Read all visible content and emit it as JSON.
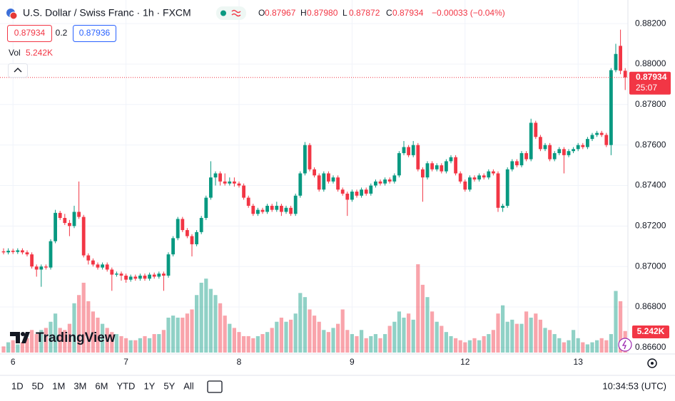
{
  "header": {
    "symbol": "U.S. Dollar / Swiss Franc · 1h · FXCM",
    "ohlc": [
      {
        "label": "O",
        "value": "0.87967"
      },
      {
        "label": "H",
        "value": "0.87980"
      },
      {
        "label": "L",
        "value": "0.87872"
      },
      {
        "label": "C",
        "value": "0.87934"
      }
    ],
    "change": "−0.00033 (−0.04%)"
  },
  "trade": {
    "sell": "0.87934",
    "spread": "0.2",
    "buy": "0.87936"
  },
  "volume_legend": {
    "label": "Vol",
    "value": "5.242K"
  },
  "logo": "TradingView",
  "toolbar": {
    "ranges": [
      "1D",
      "5D",
      "1M",
      "3M",
      "6M",
      "YTD",
      "1Y",
      "5Y",
      "All"
    ],
    "time": "10:34:53 (UTC)"
  },
  "chart_data": {
    "type": "candlestick",
    "up_color": "#089981",
    "down_color": "#f23645",
    "grid": true,
    "categories": [
      null,
      null,
      "6",
      null,
      null,
      null,
      null,
      null,
      null,
      null,
      null,
      null,
      null,
      null,
      null,
      null,
      null,
      null,
      null,
      null,
      null,
      null,
      null,
      null,
      null,
      null,
      "7",
      null,
      null,
      null,
      null,
      null,
      null,
      null,
      null,
      null,
      null,
      null,
      null,
      null,
      null,
      null,
      null,
      null,
      null,
      null,
      null,
      null,
      null,
      null,
      "8",
      null,
      null,
      null,
      null,
      null,
      null,
      null,
      null,
      null,
      null,
      null,
      null,
      null,
      null,
      null,
      null,
      null,
      null,
      null,
      null,
      null,
      null,
      null,
      "9",
      null,
      null,
      null,
      null,
      null,
      null,
      null,
      null,
      null,
      null,
      null,
      null,
      null,
      null,
      null,
      null,
      null,
      null,
      null,
      null,
      null,
      null,
      null,
      "12",
      null,
      null,
      null,
      null,
      null,
      null,
      null,
      null,
      null,
      null,
      null,
      null,
      null,
      null,
      null,
      null,
      null,
      null,
      null,
      null,
      null,
      null,
      null,
      "13",
      null,
      null,
      null,
      null,
      null,
      null,
      null,
      null,
      null,
      null
    ],
    "candles": [
      [
        0.87075,
        0.8709,
        0.8706,
        0.8707
      ],
      [
        0.8707,
        0.8709,
        0.8706,
        0.87078
      ],
      [
        0.87078,
        0.87088,
        0.87062,
        0.87072
      ],
      [
        0.87072,
        0.8709,
        0.87062,
        0.8708
      ],
      [
        0.8708,
        0.8709,
        0.8706,
        0.8707
      ],
      [
        0.8707,
        0.8708,
        0.8705,
        0.8706
      ],
      [
        0.8706,
        0.8707,
        0.8699,
        0.87
      ],
      [
        0.87,
        0.8701,
        0.8695,
        0.86985
      ],
      [
        0.86985,
        0.8701,
        0.869,
        0.87
      ],
      [
        0.87,
        0.8701,
        0.86985,
        0.86995
      ],
      [
        0.86995,
        0.87135,
        0.86985,
        0.87125
      ],
      [
        0.87125,
        0.8728,
        0.87115,
        0.87265
      ],
      [
        0.87265,
        0.87275,
        0.8723,
        0.8724
      ],
      [
        0.8724,
        0.8726,
        0.87205,
        0.87215
      ],
      [
        0.87215,
        0.8723,
        0.8715,
        0.872
      ],
      [
        0.872,
        0.873,
        0.8719,
        0.8727
      ],
      [
        0.8727,
        0.8742,
        0.87235,
        0.87245
      ],
      [
        0.87245,
        0.87255,
        0.87045,
        0.87055
      ],
      [
        0.87055,
        0.87065,
        0.8701,
        0.8703
      ],
      [
        0.8703,
        0.8704,
        0.87,
        0.8701
      ],
      [
        0.8701,
        0.8702,
        0.86985,
        0.86995
      ],
      [
        0.86995,
        0.8702,
        0.86985,
        0.8701
      ],
      [
        0.8701,
        0.8702,
        0.86975,
        0.86985
      ],
      [
        0.86985,
        0.86995,
        0.8688,
        0.8696
      ],
      [
        0.8696,
        0.86975,
        0.8695,
        0.86965
      ],
      [
        0.86965,
        0.86975,
        0.8693,
        0.86955
      ],
      [
        0.86955,
        0.86965,
        0.8692,
        0.86935
      ],
      [
        0.86935,
        0.8696,
        0.86925,
        0.8695
      ],
      [
        0.8695,
        0.8696,
        0.8693,
        0.8694
      ],
      [
        0.8694,
        0.86965,
        0.8693,
        0.86955
      ],
      [
        0.86955,
        0.86965,
        0.8693,
        0.8694
      ],
      [
        0.8694,
        0.8697,
        0.8693,
        0.8696
      ],
      [
        0.8696,
        0.8697,
        0.8694,
        0.8695
      ],
      [
        0.8695,
        0.86975,
        0.8694,
        0.86965
      ],
      [
        0.86965,
        0.86975,
        0.8688,
        0.86955
      ],
      [
        0.86955,
        0.8707,
        0.86945,
        0.8706
      ],
      [
        0.8706,
        0.8715,
        0.8705,
        0.8714
      ],
      [
        0.8714,
        0.87245,
        0.8713,
        0.87235
      ],
      [
        0.87235,
        0.87245,
        0.8717,
        0.8718
      ],
      [
        0.8718,
        0.8719,
        0.8714,
        0.8715
      ],
      [
        0.8715,
        0.8716,
        0.8705,
        0.8711
      ],
      [
        0.8711,
        0.8718,
        0.871,
        0.8717
      ],
      [
        0.8717,
        0.8725,
        0.8716,
        0.8724
      ],
      [
        0.8724,
        0.8735,
        0.8723,
        0.8734
      ],
      [
        0.8734,
        0.8752,
        0.8733,
        0.8744
      ],
      [
        0.8744,
        0.8747,
        0.874,
        0.8746
      ],
      [
        0.8746,
        0.8747,
        0.874,
        0.8742
      ],
      [
        0.8742,
        0.8746,
        0.874,
        0.8741
      ],
      [
        0.8741,
        0.8744,
        0.874,
        0.8742
      ],
      [
        0.8742,
        0.8744,
        0.87395,
        0.8741
      ],
      [
        0.8741,
        0.8742,
        0.8739,
        0.874
      ],
      [
        0.874,
        0.8741,
        0.8733,
        0.8734
      ],
      [
        0.8734,
        0.8735,
        0.8729,
        0.873
      ],
      [
        0.873,
        0.8731,
        0.8725,
        0.8726
      ],
      [
        0.8726,
        0.8729,
        0.8725,
        0.8728
      ],
      [
        0.8728,
        0.8729,
        0.8726,
        0.8727
      ],
      [
        0.8727,
        0.8731,
        0.8726,
        0.873
      ],
      [
        0.873,
        0.8731,
        0.8727,
        0.8728
      ],
      [
        0.8728,
        0.8732,
        0.8727,
        0.873
      ],
      [
        0.873,
        0.8731,
        0.8725,
        0.8727
      ],
      [
        0.8727,
        0.873,
        0.8726,
        0.8729
      ],
      [
        0.8729,
        0.873,
        0.8725,
        0.8726
      ],
      [
        0.8726,
        0.8736,
        0.8725,
        0.8735
      ],
      [
        0.8735,
        0.8747,
        0.8734,
        0.8746
      ],
      [
        0.8746,
        0.87615,
        0.8745,
        0.876
      ],
      [
        0.876,
        0.8761,
        0.8747,
        0.8748
      ],
      [
        0.8748,
        0.8749,
        0.8744,
        0.8745
      ],
      [
        0.8745,
        0.8746,
        0.8737,
        0.8738
      ],
      [
        0.8738,
        0.8747,
        0.8737,
        0.8746
      ],
      [
        0.8746,
        0.8747,
        0.8741,
        0.8742
      ],
      [
        0.8742,
        0.8745,
        0.8741,
        0.8744
      ],
      [
        0.8744,
        0.8745,
        0.8737,
        0.8738
      ],
      [
        0.8738,
        0.8739,
        0.8735,
        0.8736
      ],
      [
        0.8736,
        0.8737,
        0.8725,
        0.8733
      ],
      [
        0.8733,
        0.8738,
        0.8732,
        0.8737
      ],
      [
        0.8737,
        0.8738,
        0.8734,
        0.8735
      ],
      [
        0.8735,
        0.8739,
        0.8734,
        0.8738
      ],
      [
        0.8738,
        0.8739,
        0.8735,
        0.8736
      ],
      [
        0.8736,
        0.8741,
        0.8735,
        0.874
      ],
      [
        0.874,
        0.8743,
        0.8739,
        0.8742
      ],
      [
        0.8742,
        0.8743,
        0.874,
        0.8741
      ],
      [
        0.8741,
        0.8744,
        0.874,
        0.8743
      ],
      [
        0.8743,
        0.8744,
        0.8741,
        0.8742
      ],
      [
        0.8742,
        0.8746,
        0.8741,
        0.8745
      ],
      [
        0.8745,
        0.8757,
        0.8744,
        0.8756
      ],
      [
        0.8756,
        0.8762,
        0.8755,
        0.8759
      ],
      [
        0.8759,
        0.876,
        0.8754,
        0.8755
      ],
      [
        0.8755,
        0.8762,
        0.8754,
        0.876
      ],
      [
        0.876,
        0.8761,
        0.8747,
        0.8748
      ],
      [
        0.8748,
        0.8749,
        0.8732,
        0.8744
      ],
      [
        0.8744,
        0.8752,
        0.8743,
        0.8751
      ],
      [
        0.8751,
        0.8752,
        0.8747,
        0.8748
      ],
      [
        0.8748,
        0.8751,
        0.8747,
        0.875
      ],
      [
        0.875,
        0.8751,
        0.8746,
        0.8747
      ],
      [
        0.8747,
        0.8753,
        0.8746,
        0.8752
      ],
      [
        0.8752,
        0.8755,
        0.8751,
        0.8754
      ],
      [
        0.8754,
        0.8755,
        0.8745,
        0.8746
      ],
      [
        0.8746,
        0.8747,
        0.8741,
        0.8742
      ],
      [
        0.8742,
        0.8743,
        0.8737,
        0.8738
      ],
      [
        0.8738,
        0.8745,
        0.8737,
        0.8744
      ],
      [
        0.8744,
        0.8745,
        0.8742,
        0.8743
      ],
      [
        0.8743,
        0.8746,
        0.8742,
        0.8745
      ],
      [
        0.8745,
        0.8746,
        0.8743,
        0.8744
      ],
      [
        0.8744,
        0.8748,
        0.8743,
        0.8747
      ],
      [
        0.8747,
        0.8748,
        0.8745,
        0.8746
      ],
      [
        0.8746,
        0.8747,
        0.8727,
        0.8729
      ],
      [
        0.8729,
        0.8731,
        0.8727,
        0.873
      ],
      [
        0.873,
        0.8749,
        0.8729,
        0.8748
      ],
      [
        0.8748,
        0.8753,
        0.8747,
        0.8752
      ],
      [
        0.8752,
        0.8753,
        0.8749,
        0.875
      ],
      [
        0.875,
        0.8757,
        0.8749,
        0.8756
      ],
      [
        0.8756,
        0.8757,
        0.8752,
        0.8753
      ],
      [
        0.8753,
        0.8773,
        0.8752,
        0.8771
      ],
      [
        0.8771,
        0.8772,
        0.8763,
        0.8764
      ],
      [
        0.8764,
        0.8765,
        0.8757,
        0.8758
      ],
      [
        0.8758,
        0.8761,
        0.8757,
        0.876
      ],
      [
        0.876,
        0.8761,
        0.8752,
        0.8753
      ],
      [
        0.8753,
        0.8757,
        0.8752,
        0.8756
      ],
      [
        0.8756,
        0.8759,
        0.8755,
        0.8758
      ],
      [
        0.8758,
        0.8759,
        0.8746,
        0.8755
      ],
      [
        0.8755,
        0.8758,
        0.8754,
        0.8757
      ],
      [
        0.8757,
        0.8759,
        0.8756,
        0.8758
      ],
      [
        0.8758,
        0.8761,
        0.8757,
        0.876
      ],
      [
        0.876,
        0.8761,
        0.8758,
        0.8759
      ],
      [
        0.8759,
        0.8764,
        0.8758,
        0.8763
      ],
      [
        0.8763,
        0.8766,
        0.8762,
        0.8765
      ],
      [
        0.8765,
        0.8767,
        0.8764,
        0.8766
      ],
      [
        0.8766,
        0.8767,
        0.8764,
        0.8765
      ],
      [
        0.8765,
        0.8766,
        0.8759,
        0.876
      ],
      [
        0.876,
        0.8798,
        0.8755,
        0.8797
      ],
      [
        0.8797,
        0.881,
        0.8796,
        0.8805
      ],
      [
        0.8809,
        0.8817,
        0.8795,
        0.87967
      ],
      [
        0.87967,
        0.8798,
        0.87872,
        0.87934
      ]
    ],
    "volume": [
      1500,
      2500,
      3000,
      2000,
      2500,
      3500,
      5500,
      4500,
      5500,
      6000,
      7500,
      9500,
      6000,
      5500,
      7000,
      12000,
      14000,
      17000,
      12500,
      10000,
      8500,
      7000,
      6000,
      5000,
      4500,
      4000,
      3500,
      3000,
      3000,
      3500,
      4000,
      3500,
      4500,
      4500,
      5500,
      8500,
      9000,
      8500,
      8500,
      9500,
      10500,
      14000,
      17000,
      18000,
      15500,
      14000,
      12000,
      9000,
      7000,
      6000,
      5000,
      4000,
      4000,
      3500,
      4000,
      4500,
      5000,
      6000,
      7500,
      8500,
      7500,
      8000,
      9500,
      14500,
      13500,
      10500,
      9000,
      7500,
      5500,
      5000,
      6000,
      7000,
      10500,
      5500,
      4500,
      4000,
      5500,
      3500,
      4000,
      4500,
      3500,
      4500,
      6500,
      7500,
      10000,
      8500,
      9500,
      8000,
      21500,
      16500,
      13500,
      10000,
      7500,
      6500,
      5000,
      4000,
      3500,
      3000,
      2500,
      3000,
      3500,
      3000,
      4000,
      4500,
      5500,
      9500,
      11500,
      7500,
      8000,
      7000,
      7000,
      10000,
      8500,
      9500,
      8000,
      6000,
      5500,
      4500,
      3500,
      2500,
      3000,
      5500,
      3500,
      2500,
      2000,
      2500,
      3000,
      3500,
      3000,
      4500,
      15000,
      12500,
      5242
    ],
    "ylim": [
      0.86575,
      0.88218
    ],
    "yticks": [
      {
        "value": 0.866,
        "label": "0.86600"
      },
      {
        "value": 0.868,
        "label": "0.86800"
      },
      {
        "value": 0.87,
        "label": "0.87000"
      },
      {
        "value": 0.872,
        "label": "0.87200"
      },
      {
        "value": 0.874,
        "label": "0.87400"
      },
      {
        "value": 0.876,
        "label": "0.87600"
      },
      {
        "value": 0.878,
        "label": "0.87800"
      },
      {
        "value": 0.88,
        "label": "0.88000"
      },
      {
        "value": 0.882,
        "label": "0.88200"
      }
    ],
    "last_label": "0.87934",
    "countdown": "25:07"
  }
}
